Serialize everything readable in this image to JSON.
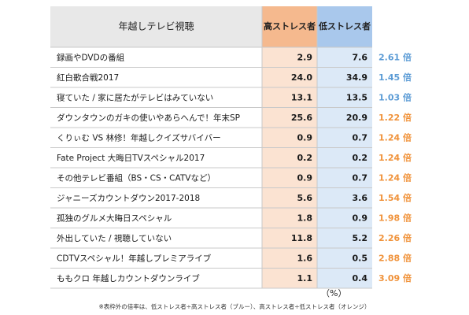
{
  "chart_data": {
    "type": "table",
    "header": {
      "label": "年越しテレビ視聴",
      "high": "高ストレス者",
      "low": "低ストレス者"
    },
    "rows": [
      {
        "label": "録画やDVDの番組",
        "high": "2.9",
        "low": "7.6",
        "ratio": "2.61 倍",
        "ratio_color": "#5b9bd5"
      },
      {
        "label": "紅白歌合戦2017",
        "high": "24.0",
        "low": "34.9",
        "ratio": "1.45 倍",
        "ratio_color": "#5b9bd5"
      },
      {
        "label": "寝ていた / 家に居たがテレビはみていない",
        "high": "13.1",
        "low": "13.5",
        "ratio": "1.03 倍",
        "ratio_color": "#5b9bd5"
      },
      {
        "label": "ダウンタウンのガキの使いやあらへんで！年末SP",
        "high": "25.6",
        "low": "20.9",
        "ratio": "1.22 倍",
        "ratio_color": "#f0923a"
      },
      {
        "label": "くりぃむ VS 林修！年越しクイズサバイバー",
        "high": "0.9",
        "low": "0.7",
        "ratio": "1.24 倍",
        "ratio_color": "#f0923a"
      },
      {
        "label": "Fate Project 大晦日TVスペシャル2017",
        "high": "0.2",
        "low": "0.2",
        "ratio": "1.24 倍",
        "ratio_color": "#f0923a"
      },
      {
        "label": "その他テレビ番組（BS・CS・CATVなど）",
        "high": "0.9",
        "low": "0.7",
        "ratio": "1.24 倍",
        "ratio_color": "#f0923a"
      },
      {
        "label": "ジャニーズカウントダウン2017-2018",
        "high": "5.6",
        "low": "3.6",
        "ratio": "1.54 倍",
        "ratio_color": "#f0923a"
      },
      {
        "label": "孤独のグルメ大晦日スペシャル",
        "high": "1.8",
        "low": "0.9",
        "ratio": "1.98 倍",
        "ratio_color": "#f0923a"
      },
      {
        "label": "外出していた / 視聴していない",
        "high": "11.8",
        "low": "5.2",
        "ratio": "2.26 倍",
        "ratio_color": "#f0923a"
      },
      {
        "label": "CDTVスペシャル！年越しプレミアライブ",
        "high": "1.6",
        "low": "0.5",
        "ratio": "2.88 倍",
        "ratio_color": "#f0923a"
      },
      {
        "label": "ももクロ 年越しカウントダウンライブ",
        "high": "1.1",
        "low": "0.4",
        "ratio": "3.09 倍",
        "ratio_color": "#f0923a"
      }
    ],
    "unit": "（%）",
    "note": "※表枠外の倍率は、低ストレス者÷高ストレス者（ブルー）、高ストレス者÷低ストレス者（オレンジ）",
    "colors": {
      "header_bg": "#e8e8e8",
      "high_header": "#f5b98e",
      "low_header": "#a9c8ec",
      "high_cell": "#fbe3d2",
      "low_cell": "#dce9f7",
      "grid": "#c9c9c9"
    }
  }
}
